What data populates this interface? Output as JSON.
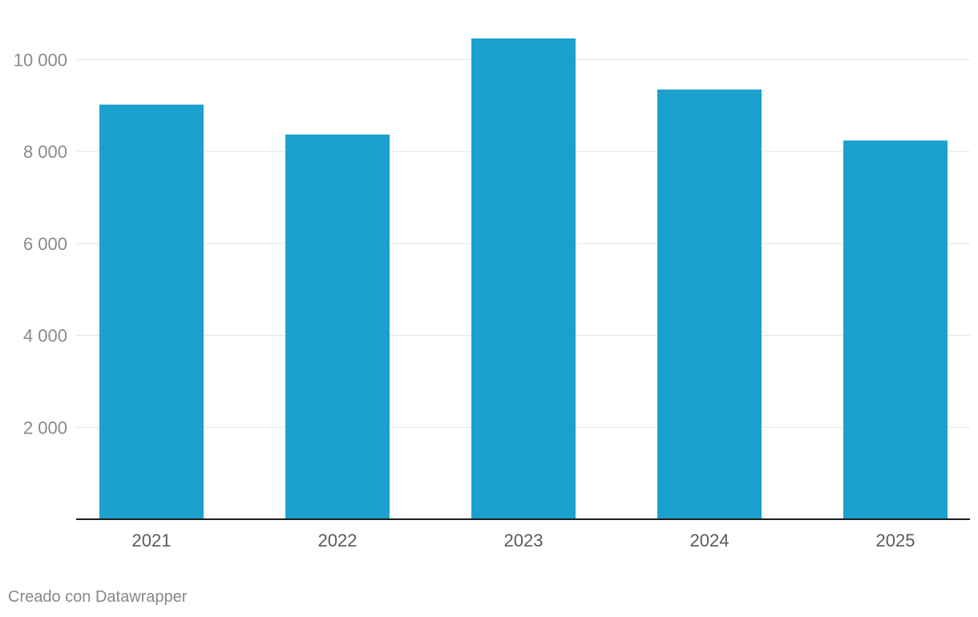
{
  "chart_data": {
    "type": "bar",
    "categories": [
      "2021",
      "2022",
      "2023",
      "2024",
      "2025"
    ],
    "values": [
      9020,
      8370,
      10460,
      9350,
      8240
    ],
    "ylim": [
      0,
      10460
    ],
    "yticks": [
      2000,
      4000,
      6000,
      8000,
      10000
    ],
    "ytick_labels": [
      "2 000",
      "4 000",
      "6 000",
      "8 000",
      "10 000"
    ],
    "grid": true,
    "bar_color": "#1aa1cd"
  },
  "footer": {
    "credit": "Creado con Datawrapper"
  }
}
